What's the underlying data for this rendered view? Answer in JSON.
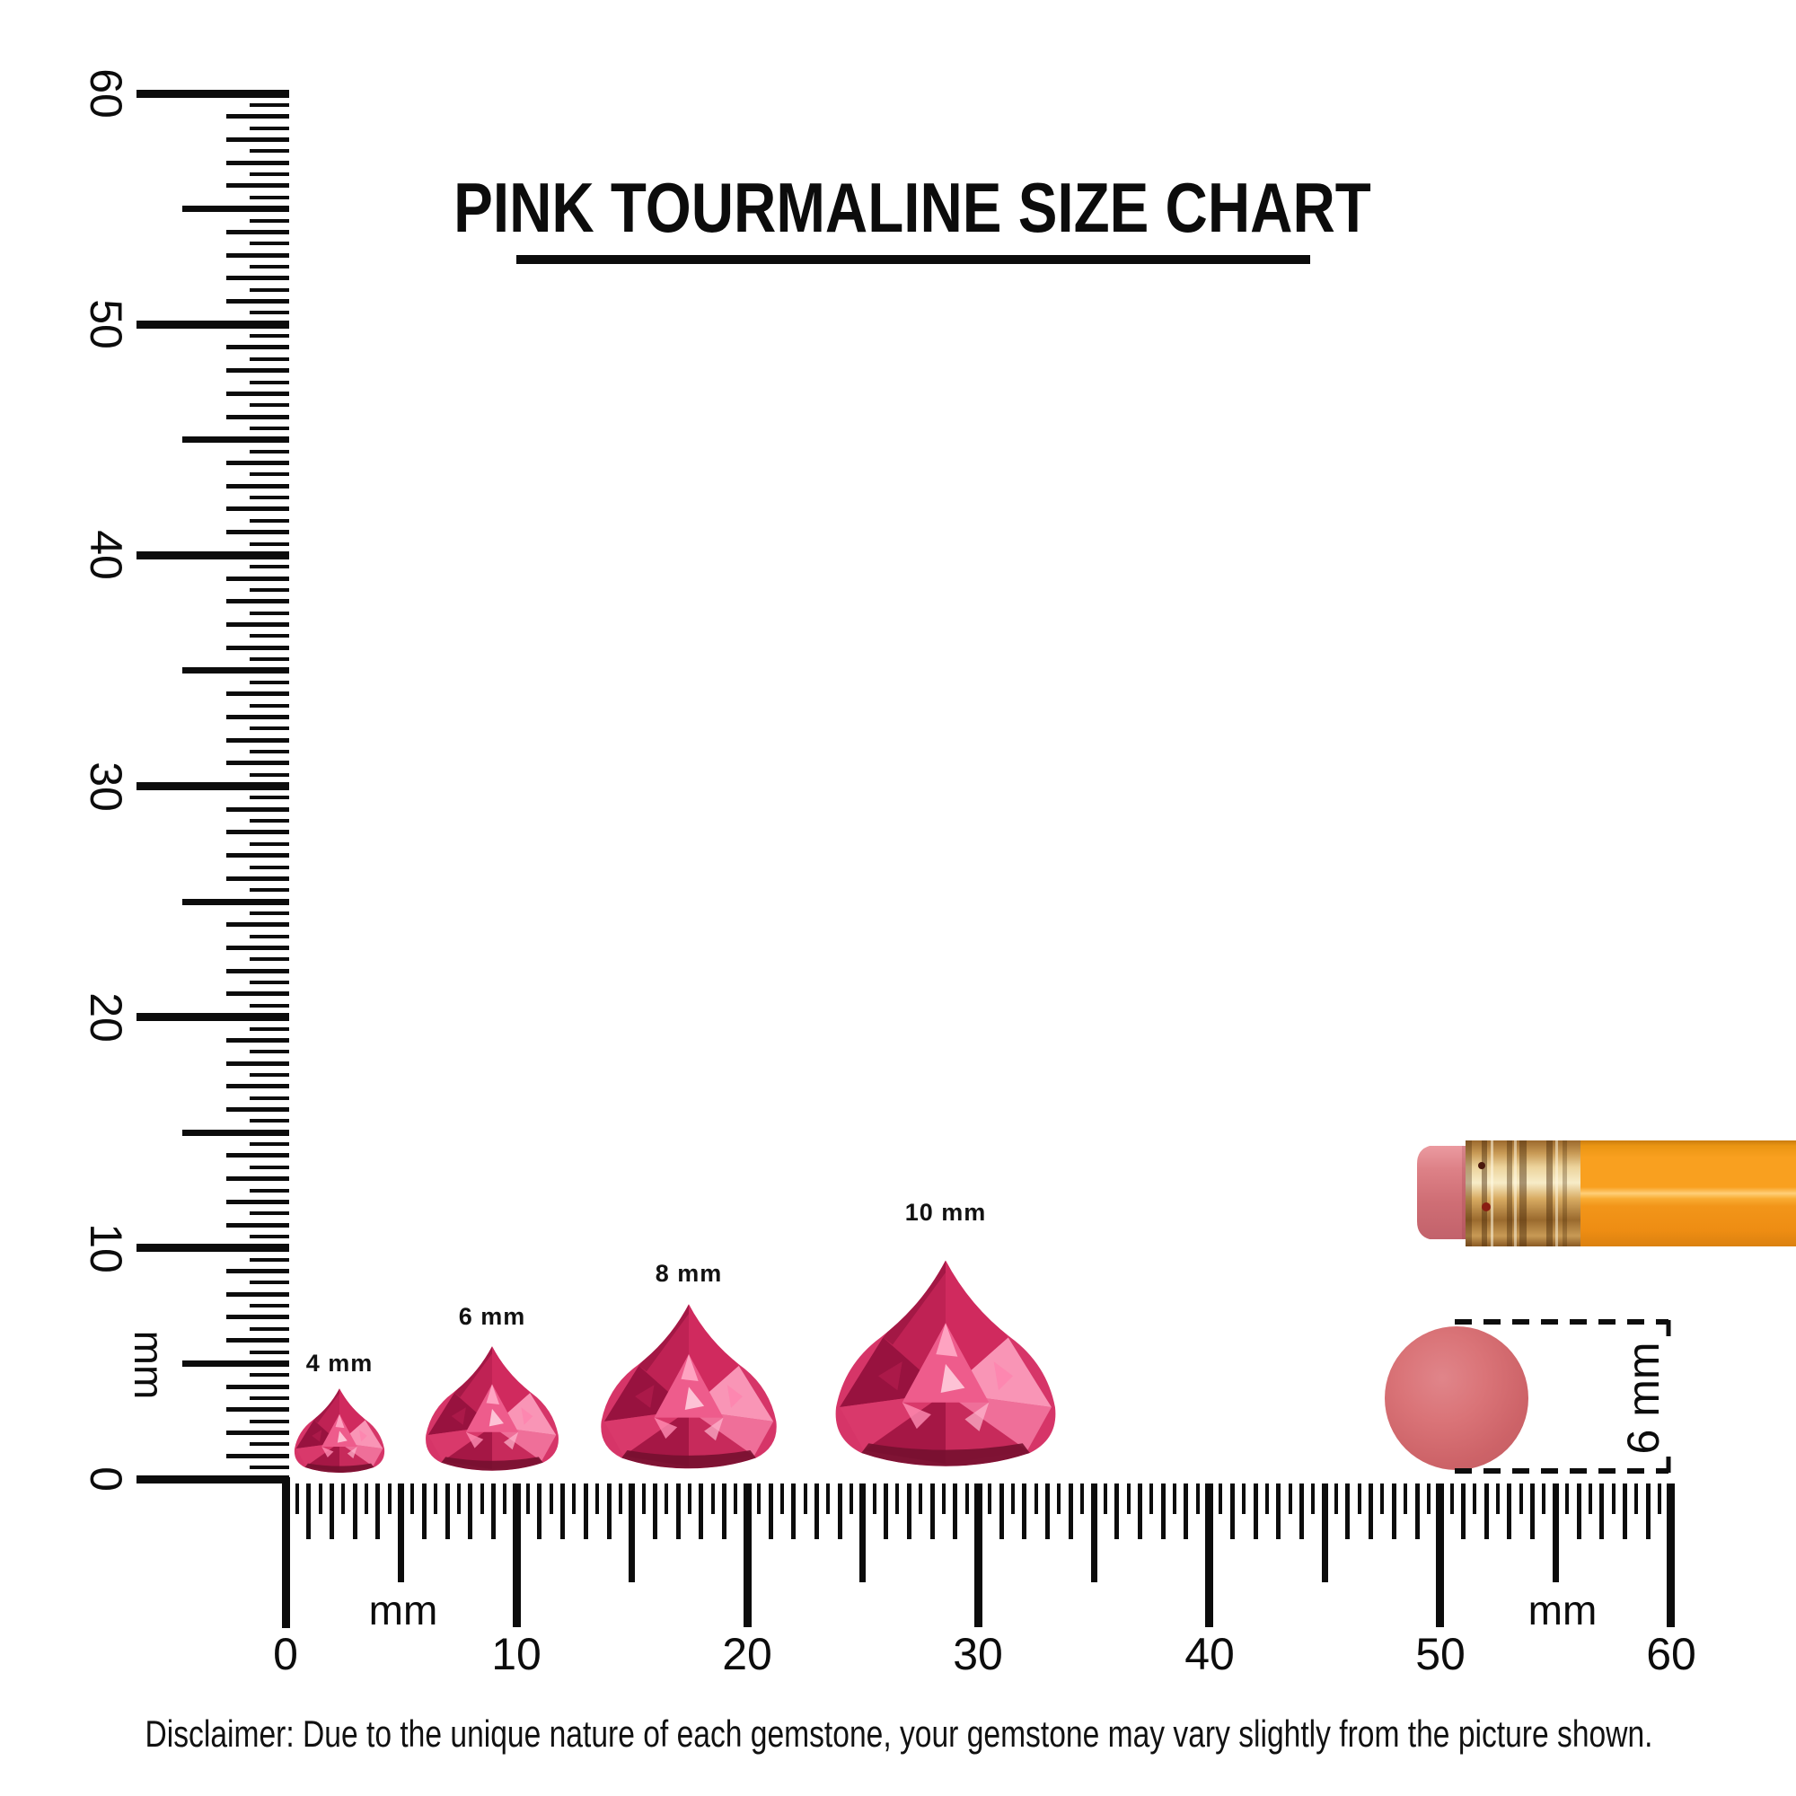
{
  "title": {
    "text": "PINK TOURMALINE SIZE CHART"
  },
  "rulers": {
    "vertical": {
      "unit_label": "mm",
      "numbers": [
        "60",
        "50",
        "40",
        "30",
        "20",
        "10",
        "0"
      ]
    },
    "horizontal": {
      "unit_label_left": "mm",
      "unit_label_right": "mm",
      "numbers": [
        "0",
        "10",
        "20",
        "30",
        "40",
        "50",
        "60"
      ]
    }
  },
  "gems": [
    {
      "label": "4 mm",
      "size_mm": 4
    },
    {
      "label": "6 mm",
      "size_mm": 6
    },
    {
      "label": "8 mm",
      "size_mm": 8
    },
    {
      "label": "10 mm",
      "size_mm": 10
    }
  ],
  "eraser_comparison": {
    "dimension_label": "6 mm"
  },
  "pencil": {
    "name": "pencil with eraser"
  },
  "disclaimer": {
    "text": "Disclaimer: Due to the unique nature of each gemstone, your gemstone may vary slightly from the picture shown."
  },
  "colors": {
    "ink": "#0c0c0c",
    "gem_primary": "#d63568",
    "gem_dark": "#98123f",
    "gem_light": "#f995b6",
    "pencil_body": "#f9a01f",
    "pencil_eraser": "#d4747c",
    "pencil_ferrule": "#d8ab62",
    "comparison_dot": "#cd6368"
  }
}
